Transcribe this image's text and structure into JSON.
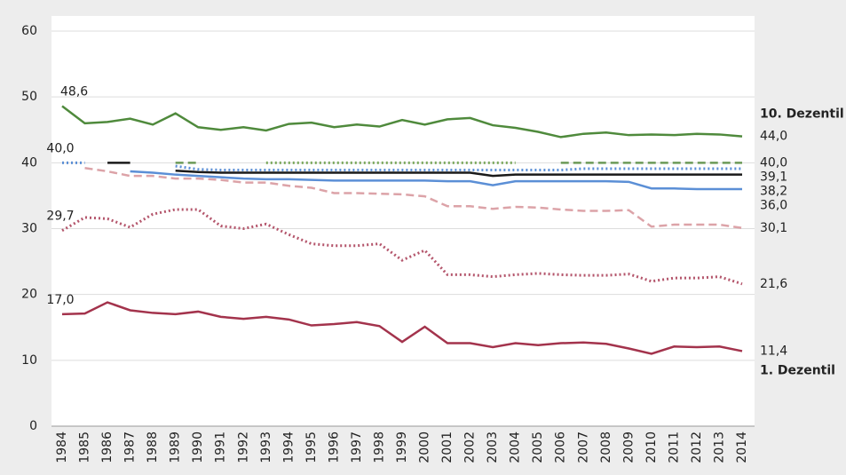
{
  "chart_data": {
    "type": "line",
    "categories": [
      "1984",
      "1985",
      "1986",
      "1987",
      "1988",
      "1989",
      "1990",
      "1991",
      "1992",
      "1993",
      "1994",
      "1995",
      "1996",
      "1997",
      "1998",
      "1999",
      "2000",
      "2001",
      "2002",
      "2003",
      "2004",
      "2005",
      "2006",
      "2007",
      "2008",
      "2009",
      "2010",
      "2011",
      "2012",
      "2013",
      "2014"
    ],
    "ylim": [
      0,
      60
    ],
    "yticks": [
      0,
      10,
      20,
      30,
      40,
      50,
      60
    ],
    "grid": true,
    "series": [
      {
        "name": "10. Dezentil",
        "color": "#4f8a3c",
        "style": "solid",
        "values": [
          48.6,
          46.0,
          46.2,
          46.7,
          45.8,
          47.5,
          45.4,
          45.0,
          45.4,
          44.9,
          45.9,
          46.1,
          45.4,
          45.8,
          45.5,
          46.5,
          45.8,
          46.6,
          46.8,
          45.7,
          45.3,
          44.7,
          43.9,
          44.4,
          44.6,
          44.2,
          44.3,
          44.2,
          44.4,
          44.3,
          44.0
        ],
        "value_labels": {
          "0": "48,6",
          "30": "44,0"
        }
      },
      {
        "color": "#6c9a58",
        "style": "dashed",
        "values": [
          null,
          null,
          null,
          null,
          null,
          40.0,
          40.0,
          null,
          null,
          null,
          null,
          null,
          null,
          null,
          null,
          null,
          null,
          null,
          null,
          null,
          null,
          null,
          40.0,
          40.0,
          40.0,
          40.0,
          40.0,
          40.0,
          40.0,
          40.0,
          40.0
        ],
        "value_labels": {
          "30": "40,0"
        }
      },
      {
        "color": "#7aa85c",
        "style": "dotted",
        "values": [
          null,
          null,
          null,
          null,
          null,
          null,
          null,
          null,
          null,
          40.0,
          40.0,
          40.0,
          40.0,
          40.0,
          40.0,
          40.0,
          40.0,
          40.0,
          40.0,
          40.0,
          40.0,
          null,
          null,
          null,
          null,
          null,
          null,
          null,
          null,
          null,
          null
        ]
      },
      {
        "color": "#5b8fd6",
        "style": "dotted",
        "values": [
          40.0,
          40.0,
          null,
          null,
          null,
          39.5,
          39.0,
          38.9,
          38.9,
          38.9,
          38.9,
          38.9,
          38.9,
          38.9,
          38.9,
          38.9,
          38.9,
          38.9,
          38.9,
          38.9,
          38.9,
          38.9,
          38.9,
          39.1,
          39.1,
          39.1,
          39.1,
          39.1,
          39.1,
          39.1,
          39.1
        ],
        "value_labels": {
          "0": "40,0",
          "30": "39,1"
        }
      },
      {
        "color": "#1a1a1a",
        "style": "solid",
        "values": [
          null,
          null,
          40.0,
          40.0,
          null,
          38.8,
          38.6,
          38.5,
          38.5,
          38.5,
          38.5,
          38.5,
          38.5,
          38.5,
          38.5,
          38.5,
          38.5,
          38.5,
          38.5,
          38.0,
          38.2,
          38.2,
          38.2,
          38.2,
          38.2,
          38.2,
          38.2,
          38.2,
          38.2,
          38.2,
          38.2
        ],
        "value_labels": {
          "30": "38,2"
        }
      },
      {
        "color": "#5b8fd6",
        "style": "solid",
        "values": [
          null,
          null,
          null,
          38.7,
          38.5,
          38.2,
          38.0,
          37.8,
          37.6,
          37.5,
          37.5,
          37.4,
          37.3,
          37.3,
          37.3,
          37.3,
          37.3,
          37.2,
          37.2,
          36.6,
          37.2,
          37.2,
          37.2,
          37.2,
          37.2,
          37.1,
          36.1,
          36.1,
          36.0,
          36.0,
          36.0
        ],
        "value_labels": {
          "30": "36,0"
        }
      },
      {
        "color": "#dca3a8",
        "style": "dashed",
        "values": [
          null,
          39.2,
          38.7,
          38.0,
          38.0,
          37.6,
          37.6,
          37.4,
          37.0,
          37.0,
          36.5,
          36.2,
          35.4,
          35.4,
          35.3,
          35.2,
          34.9,
          33.4,
          33.4,
          33.0,
          33.3,
          33.2,
          32.9,
          32.7,
          32.7,
          32.8,
          30.3,
          30.6,
          30.6,
          30.6,
          30.1
        ],
        "value_labels": {
          "30": "30,1"
        }
      },
      {
        "color": "#b4566c",
        "style": "dotted",
        "values": [
          29.7,
          31.7,
          31.5,
          30.2,
          32.2,
          32.9,
          32.9,
          30.4,
          30.0,
          30.7,
          29.1,
          27.7,
          27.4,
          27.4,
          27.7,
          25.2,
          26.7,
          23.0,
          23.0,
          22.7,
          23.0,
          23.2,
          23.0,
          22.9,
          22.9,
          23.1,
          22.0,
          22.5,
          22.5,
          22.7,
          21.6
        ],
        "value_labels": {
          "0": "29,7",
          "30": "21,6"
        }
      },
      {
        "name": "1. Dezentil",
        "color": "#a3334c",
        "style": "solid",
        "values": [
          17.0,
          17.1,
          18.8,
          17.6,
          17.2,
          17.0,
          17.4,
          16.6,
          16.3,
          16.6,
          16.2,
          15.3,
          15.5,
          15.8,
          15.2,
          12.8,
          15.1,
          12.6,
          12.6,
          12.0,
          12.6,
          12.3,
          12.6,
          12.7,
          12.5,
          11.8,
          11.0,
          12.1,
          12.0,
          12.1,
          11.4
        ],
        "value_labels": {
          "0": "17,0",
          "30": "11,4"
        }
      }
    ]
  }
}
